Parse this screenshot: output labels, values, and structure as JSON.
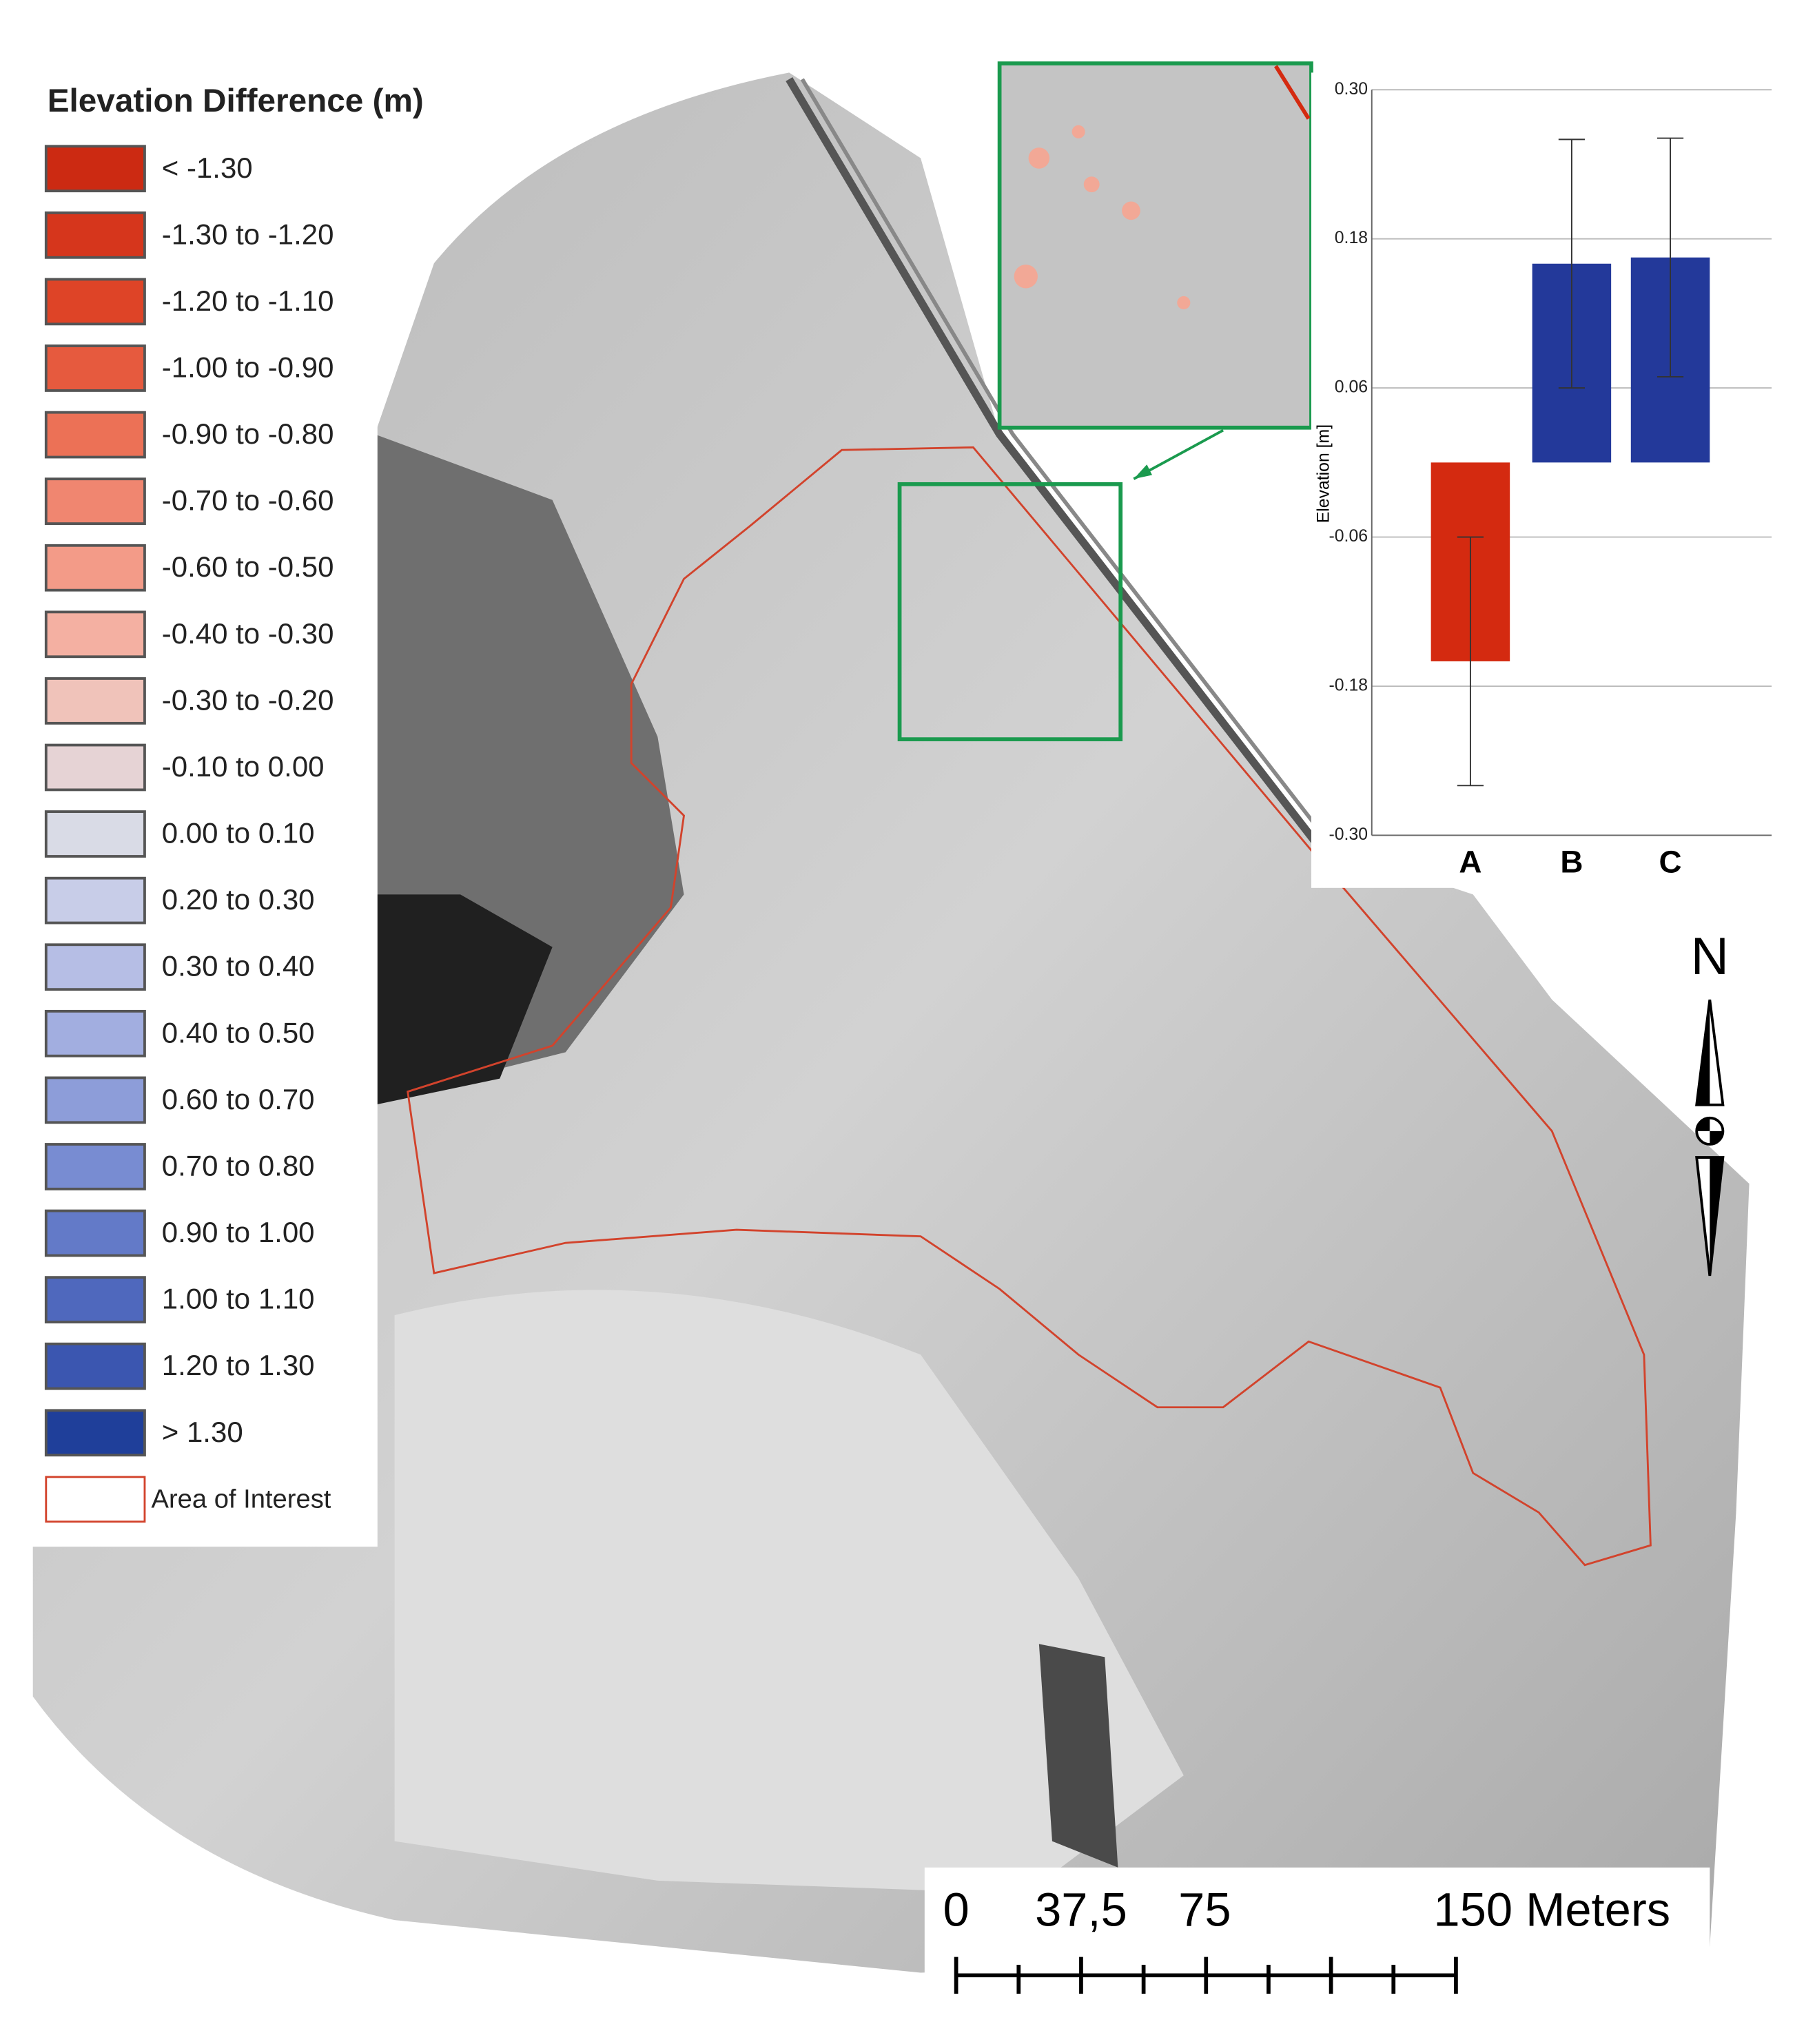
{
  "legend": {
    "title": "Elevation Difference (m)",
    "items": [
      {
        "label": "< -1.30",
        "color": "#cc2a12"
      },
      {
        "label": "-1.30 to -1.20",
        "color": "#d6361c"
      },
      {
        "label": "-1.20 to -1.10",
        "color": "#de4427"
      },
      {
        "label": "-1.00 to -0.90",
        "color": "#e65a3e"
      },
      {
        "label": "-0.90 to -0.80",
        "color": "#ec7156"
      },
      {
        "label": "-0.70 to -0.60",
        "color": "#f08670"
      },
      {
        "label": "-0.60 to -0.50",
        "color": "#f39b88"
      },
      {
        "label": "-0.40 to -0.30",
        "color": "#f4b0a2"
      },
      {
        "label": "-0.30 to -0.20",
        "color": "#f0c3ba"
      },
      {
        "label": "-0.10 to 0.00",
        "color": "#e6d3d5"
      },
      {
        "label": "0.00 to 0.10",
        "color": "#d9dbe6"
      },
      {
        "label": "0.20 to 0.30",
        "color": "#c8cde8"
      },
      {
        "label": "0.30 to 0.40",
        "color": "#b6bee5"
      },
      {
        "label": "0.40 to 0.50",
        "color": "#a2aee0"
      },
      {
        "label": "0.60 to 0.70",
        "color": "#8d9dd9"
      },
      {
        "label": "0.70 to 0.80",
        "color": "#788cd2"
      },
      {
        "label": "0.90 to 1.00",
        "color": "#637ac8"
      },
      {
        "label": "1.00 to 1.10",
        "color": "#4f68bd"
      },
      {
        "label": "1.20 to 1.30",
        "color": "#3b56b0"
      },
      {
        "label": "> 1.30",
        "color": "#1f3f9a"
      },
      {
        "label": "Area of Interest",
        "color": "#ffffff",
        "outline": "#d2432c"
      }
    ]
  },
  "chart_data": {
    "type": "bar",
    "y_label": "Elevation [m]",
    "categories": [
      "A",
      "B",
      "C"
    ],
    "values": [
      -0.16,
      0.16,
      0.165
    ],
    "errors": [
      0.1,
      0.1,
      0.096
    ],
    "colors": [
      "#d42a10",
      "#23399a",
      "#23399a"
    ],
    "ylim": [
      -0.3,
      0.3
    ],
    "yticks": [
      {
        "value": -0.3,
        "label": "-0.30"
      },
      -0.18,
      -0.06,
      0.06,
      0.18,
      {
        "value": 0.3,
        "label": "0.30"
      }
    ],
    "grid": true
  },
  "scale_bar": {
    "labels": [
      "0",
      "37,5",
      "75",
      "150 Meters"
    ]
  },
  "north_arrow": {
    "label": "N"
  }
}
